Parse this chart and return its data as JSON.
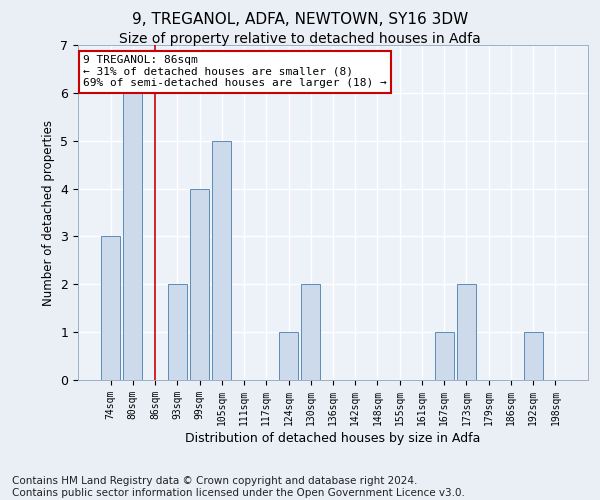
{
  "title1": "9, TREGANOL, ADFA, NEWTOWN, SY16 3DW",
  "title2": "Size of property relative to detached houses in Adfa",
  "xlabel": "Distribution of detached houses by size in Adfa",
  "ylabel": "Number of detached properties",
  "footnote": "Contains HM Land Registry data © Crown copyright and database right 2024.\nContains public sector information licensed under the Open Government Licence v3.0.",
  "categories": [
    "74sqm",
    "80sqm",
    "86sqm",
    "93sqm",
    "99sqm",
    "105sqm",
    "111sqm",
    "117sqm",
    "124sqm",
    "130sqm",
    "136sqm",
    "142sqm",
    "148sqm",
    "155sqm",
    "161sqm",
    "167sqm",
    "173sqm",
    "179sqm",
    "186sqm",
    "192sqm",
    "198sqm"
  ],
  "values": [
    3,
    6,
    0,
    2,
    4,
    5,
    0,
    0,
    1,
    2,
    0,
    0,
    0,
    0,
    0,
    1,
    2,
    0,
    0,
    1,
    0
  ],
  "bar_color": "#cddaeb",
  "bar_edge_color": "#5b8db8",
  "red_line_index": 2,
  "red_line_color": "#cc0000",
  "annotation_text": "9 TREGANOL: 86sqm\n← 31% of detached houses are smaller (8)\n69% of semi-detached houses are larger (18) →",
  "annotation_box_color": "#ffffff",
  "annotation_box_edge_color": "#cc0000",
  "ylim": [
    0,
    7
  ],
  "yticks": [
    0,
    1,
    2,
    3,
    4,
    5,
    6,
    7
  ],
  "background_color": "#eaeef5",
  "plot_bg_color": "#edf1f8",
  "grid_color": "#ffffff",
  "title1_fontsize": 11,
  "title2_fontsize": 10,
  "footnote_fontsize": 7.5
}
